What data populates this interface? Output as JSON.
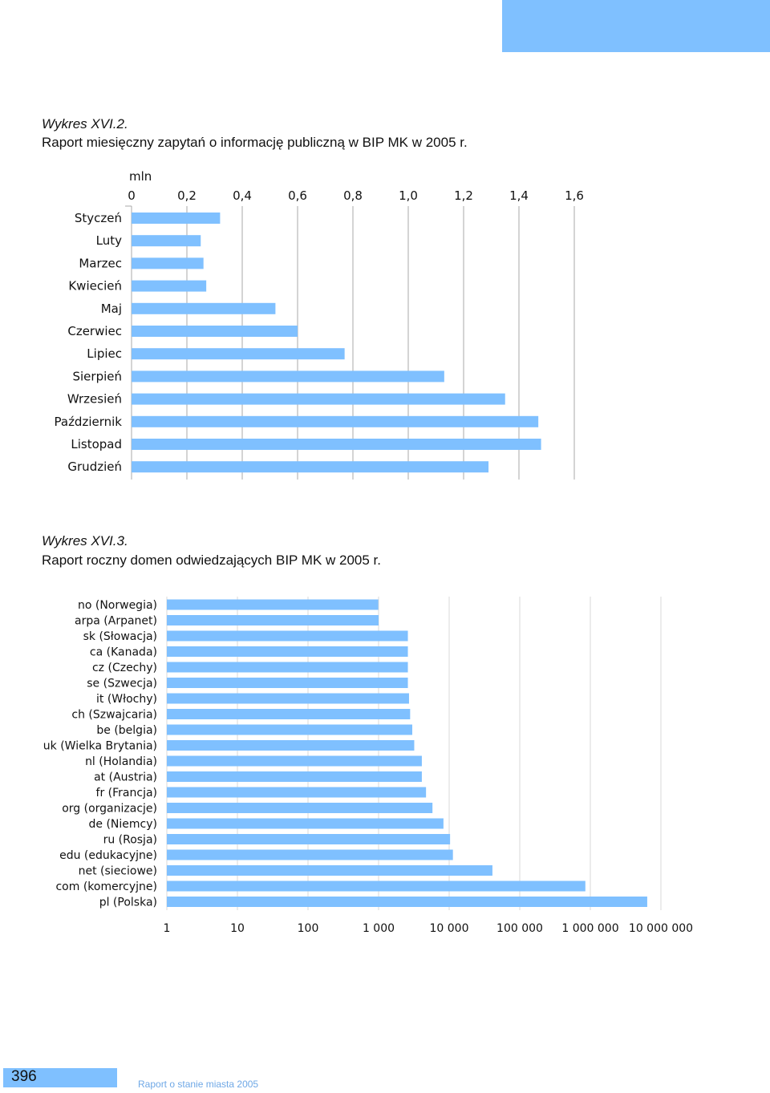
{
  "colors": {
    "bar": "#7fc0ff",
    "grid": "#aaaaaa",
    "accent": "#7fc0ff",
    "footer": "#6fa8e6"
  },
  "chart1": {
    "label": "Wykres XVI.2.",
    "title": "Raport miesięczny zapytań o informację publiczną w BIP MK w 2005 r."
  },
  "chart2": {
    "label": "Wykres XVI.3.",
    "title": "Raport roczny domen odwiedzających BIP MK w 2005 r."
  },
  "chart_data": [
    {
      "type": "bar",
      "orientation": "horizontal",
      "unit": "mln",
      "categories": [
        "Styczeń",
        "Luty",
        "Marzec",
        "Kwiecień",
        "Maj",
        "Czerwiec",
        "Lipiec",
        "Sierpień",
        "Wrzesień",
        "Październik",
        "Listopad",
        "Grudzień"
      ],
      "values": [
        0.32,
        0.25,
        0.26,
        0.27,
        0.52,
        0.6,
        0.77,
        1.13,
        1.35,
        1.47,
        1.48,
        1.29
      ],
      "xlim": [
        0,
        1.6
      ],
      "xticks": [
        "0",
        "0,2",
        "0,4",
        "0,6",
        "0,8",
        "1,0",
        "1,2",
        "1,4",
        "1,6"
      ],
      "grid": true
    },
    {
      "type": "bar",
      "orientation": "horizontal",
      "scale": "log",
      "categories": [
        "no (Norwegia)",
        "arpa (Arpanet)",
        "sk (Słowacja)",
        "ca (Kanada)",
        "cz (Czechy)",
        "se (Szwecja)",
        "it (Włochy)",
        "ch (Szwajcaria)",
        "be (belgia)",
        "uk (Wielka Brytania)",
        "nl (Holandia)",
        "at (Austria)",
        "fr (Francja)",
        "org (organizacje)",
        "de (Niemcy)",
        "ru (Rosja)",
        "edu (edukacyjne)",
        "net (sieciowe)",
        "com (komercyjne)",
        "pl (Polska)"
      ],
      "values": [
        990,
        1000,
        2600,
        2600,
        2600,
        2600,
        2700,
        2800,
        3000,
        3200,
        4100,
        4100,
        4700,
        5800,
        8300,
        10300,
        11300,
        41000,
        850000,
        6400000
      ],
      "xlim": [
        1,
        10000000
      ],
      "xticks": [
        "1",
        "10",
        "100",
        "1 000",
        "10 000",
        "100 000",
        "1 000 000",
        "10 000 000"
      ],
      "grid": true
    }
  ],
  "footer": {
    "page_number": "396",
    "text": "Raport o stanie miasta 2005"
  }
}
